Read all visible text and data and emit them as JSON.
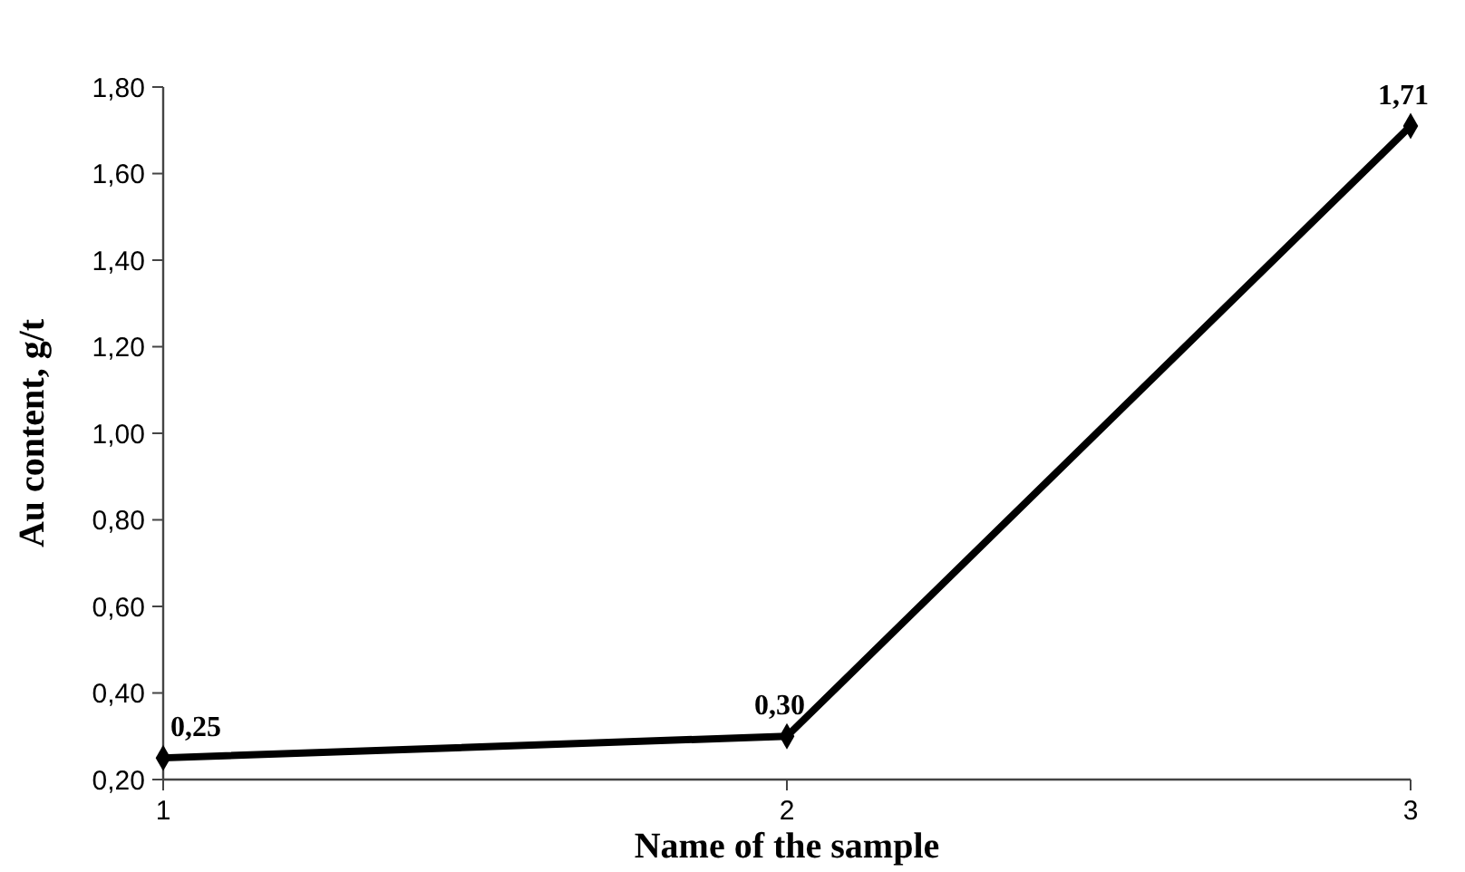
{
  "chart_data": {
    "type": "line",
    "xlabel": "Name of the sample",
    "ylabel": "Au content, g/t",
    "x": [
      1,
      2,
      3
    ],
    "xlim": [
      1,
      3
    ],
    "xticks": [
      1,
      2,
      3
    ],
    "ylim": [
      0.2,
      1.8
    ],
    "yticks": [
      {
        "value": 0.2,
        "label": "0,20"
      },
      {
        "value": 0.4,
        "label": "0,40"
      },
      {
        "value": 0.6,
        "label": "0,60"
      },
      {
        "value": 0.8,
        "label": "0,80"
      },
      {
        "value": 1.0,
        "label": "1,00"
      },
      {
        "value": 1.2,
        "label": "1,20"
      },
      {
        "value": 1.4,
        "label": "1,40"
      },
      {
        "value": 1.6,
        "label": "1,60"
      },
      {
        "value": 1.8,
        "label": "1,80"
      }
    ],
    "series": [
      {
        "color": "#000000",
        "values": [
          0.25,
          0.3,
          1.71
        ],
        "value_labels": [
          "0,25",
          "0,30",
          "1,71"
        ]
      }
    ],
    "marker": "diamond",
    "line_style": "solid"
  }
}
